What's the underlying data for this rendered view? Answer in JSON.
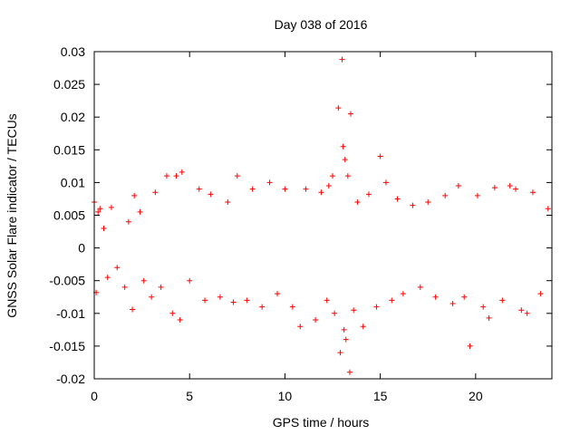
{
  "chart_data": {
    "type": "scatter",
    "title": "Day 038 of 2016",
    "xlabel": "GPS time / hours",
    "ylabel": "GNSS Solar Flare indicator / TECUs",
    "xlim": [
      0,
      24
    ],
    "ylim": [
      -0.02,
      0.03
    ],
    "x_ticks": [
      0,
      5,
      10,
      15,
      20
    ],
    "x_tick_labels": [
      "0",
      "5",
      "10",
      "15",
      "20"
    ],
    "y_ticks": [
      -0.02,
      -0.015,
      -0.01,
      -0.005,
      0,
      0.005,
      0.01,
      0.015,
      0.02,
      0.025,
      0.03
    ],
    "y_tick_labels": [
      "-0.02",
      "-0.015",
      "-0.01",
      "-0.005",
      "0",
      "0.005",
      "0.01",
      "0.015",
      "0.02",
      "0.025",
      "0.03"
    ],
    "grid": false,
    "marker": "+",
    "series": [
      {
        "color": "#ff0000",
        "points": [
          [
            0.0,
            0.007
          ],
          [
            0.1,
            -0.0068
          ],
          [
            0.2,
            0.0055
          ],
          [
            0.3,
            0.006
          ],
          [
            0.5,
            0.003
          ],
          [
            0.7,
            -0.0045
          ],
          [
            0.9,
            0.0062
          ],
          [
            1.2,
            -0.003
          ],
          [
            1.6,
            -0.006
          ],
          [
            1.8,
            0.004
          ],
          [
            2.0,
            -0.0094
          ],
          [
            2.1,
            0.008
          ],
          [
            2.4,
            0.0055
          ],
          [
            2.6,
            -0.005
          ],
          [
            3.0,
            -0.0075
          ],
          [
            3.2,
            0.0085
          ],
          [
            3.5,
            -0.006
          ],
          [
            3.8,
            0.011
          ],
          [
            4.1,
            -0.01
          ],
          [
            4.3,
            0.011
          ],
          [
            4.5,
            -0.011
          ],
          [
            4.6,
            0.0116
          ],
          [
            5.0,
            -0.005
          ],
          [
            5.5,
            0.009
          ],
          [
            5.8,
            -0.008
          ],
          [
            6.1,
            0.0082
          ],
          [
            6.6,
            -0.0075
          ],
          [
            7.0,
            0.007
          ],
          [
            7.3,
            -0.0083
          ],
          [
            7.5,
            0.011
          ],
          [
            8.0,
            -0.008
          ],
          [
            8.3,
            0.009
          ],
          [
            8.8,
            -0.009
          ],
          [
            9.2,
            0.01
          ],
          [
            9.6,
            -0.007
          ],
          [
            10.0,
            0.009
          ],
          [
            10.4,
            -0.009
          ],
          [
            10.8,
            -0.012
          ],
          [
            11.1,
            0.009
          ],
          [
            11.6,
            -0.011
          ],
          [
            11.9,
            0.0085
          ],
          [
            12.2,
            -0.008
          ],
          [
            12.3,
            0.0095
          ],
          [
            12.5,
            0.011
          ],
          [
            12.6,
            -0.01
          ],
          [
            12.8,
            0.0214
          ],
          [
            12.9,
            -0.016
          ],
          [
            13.0,
            0.0288
          ],
          [
            13.05,
            0.0155
          ],
          [
            13.1,
            -0.0125
          ],
          [
            13.15,
            0.0135
          ],
          [
            13.2,
            -0.014
          ],
          [
            13.3,
            0.011
          ],
          [
            13.4,
            -0.019
          ],
          [
            13.45,
            0.0205
          ],
          [
            13.6,
            -0.0095
          ],
          [
            13.8,
            0.007
          ],
          [
            14.1,
            -0.012
          ],
          [
            14.4,
            0.0082
          ],
          [
            14.8,
            -0.009
          ],
          [
            15.0,
            0.014
          ],
          [
            15.3,
            0.01
          ],
          [
            15.6,
            -0.008
          ],
          [
            15.9,
            0.0075
          ],
          [
            16.2,
            -0.007
          ],
          [
            16.7,
            0.0065
          ],
          [
            17.1,
            -0.006
          ],
          [
            17.5,
            0.007
          ],
          [
            17.9,
            -0.0075
          ],
          [
            18.4,
            0.008
          ],
          [
            18.8,
            -0.0085
          ],
          [
            19.1,
            0.0095
          ],
          [
            19.4,
            -0.0075
          ],
          [
            19.7,
            -0.015
          ],
          [
            20.1,
            0.008
          ],
          [
            20.4,
            -0.009
          ],
          [
            20.7,
            -0.0107
          ],
          [
            21.0,
            0.0092
          ],
          [
            21.4,
            -0.008
          ],
          [
            21.8,
            0.0095
          ],
          [
            22.1,
            0.009
          ],
          [
            22.4,
            -0.0095
          ],
          [
            22.7,
            -0.01
          ],
          [
            23.0,
            0.0085
          ],
          [
            23.4,
            -0.007
          ],
          [
            23.8,
            0.006
          ]
        ]
      }
    ]
  }
}
